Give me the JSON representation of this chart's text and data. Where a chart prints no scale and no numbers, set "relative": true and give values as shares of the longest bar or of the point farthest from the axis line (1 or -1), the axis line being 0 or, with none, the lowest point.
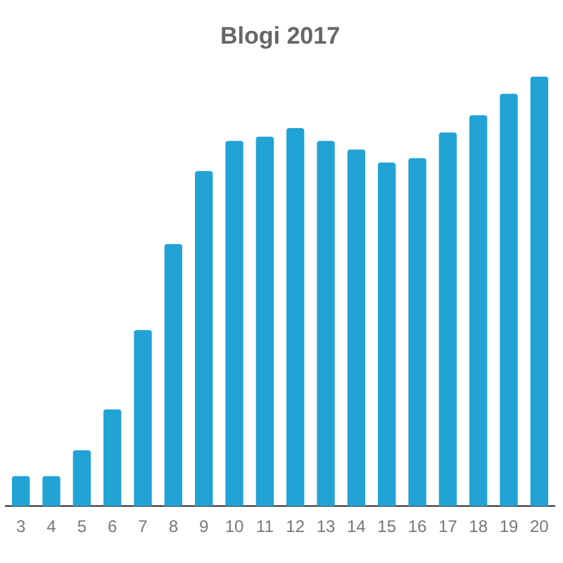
{
  "chart_data": {
    "type": "bar",
    "title": "Blogi 2017",
    "relative": true,
    "color": "#22a3d5",
    "categories": [
      "3",
      "4",
      "5",
      "6",
      "7",
      "8",
      "9",
      "10",
      "11",
      "12",
      "13",
      "14",
      "15",
      "16",
      "17",
      "18",
      "19",
      "20"
    ],
    "values": [
      0.07,
      0.07,
      0.13,
      0.225,
      0.41,
      0.61,
      0.78,
      0.85,
      0.86,
      0.88,
      0.85,
      0.83,
      0.8,
      0.81,
      0.87,
      0.91,
      0.96,
      1
    ]
  }
}
